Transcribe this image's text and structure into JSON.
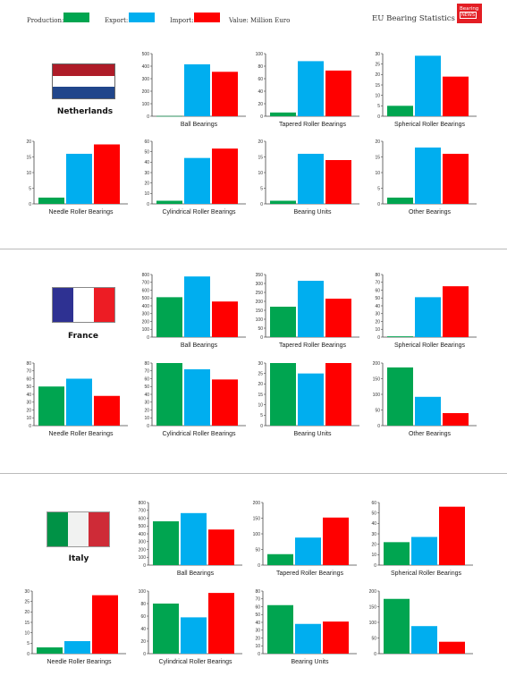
{
  "header": {
    "production_label": "Production:",
    "export_label": "Export:",
    "import_label": "Import:",
    "value_note": "Value: Million Euro",
    "title": "EU Bearing Statistics",
    "logo_line1": "Bearing",
    "logo_line2": "NEWS"
  },
  "colors": {
    "production": "#00a550",
    "export": "#00aeef",
    "import": "#ff0000"
  },
  "countries": [
    {
      "name": "Netherlands",
      "flag": [
        "#ae1c28",
        "#ffffff",
        "#21468b"
      ],
      "charts": [
        {
          "type": "bar",
          "title": "Ball Bearings",
          "ylim": [
            0,
            500
          ],
          "yticks": [
            0,
            100,
            200,
            300,
            400,
            500
          ],
          "series": [
            {
              "values": [
                2
              ]
            },
            {
              "values": [
                415
              ]
            },
            {
              "values": [
                355
              ]
            }
          ]
        },
        {
          "type": "bar",
          "title": "Tapered Roller Bearings",
          "ylim": [
            0,
            100
          ],
          "yticks": [
            0,
            20,
            40,
            60,
            80,
            100
          ],
          "series": [
            {
              "values": [
                6
              ]
            },
            {
              "values": [
                88
              ]
            },
            {
              "values": [
                73
              ]
            }
          ]
        },
        {
          "type": "bar",
          "title": "Spherical Roller Bearings",
          "ylim": [
            0,
            30
          ],
          "yticks": [
            0,
            5,
            10,
            15,
            20,
            25,
            30
          ],
          "series": [
            {
              "values": [
                5
              ]
            },
            {
              "values": [
                29
              ]
            },
            {
              "values": [
                19
              ]
            }
          ]
        },
        {
          "type": "bar",
          "title": "Needle Roller Bearings",
          "ylim": [
            0,
            20
          ],
          "yticks": [
            0,
            5,
            10,
            15,
            20
          ],
          "series": [
            {
              "values": [
                2
              ]
            },
            {
              "values": [
                16
              ]
            },
            {
              "values": [
                19
              ]
            }
          ]
        },
        {
          "type": "bar",
          "title": "Cylindrical Roller Bearings",
          "ylim": [
            0,
            60
          ],
          "yticks": [
            0,
            10,
            20,
            30,
            40,
            50,
            60
          ],
          "series": [
            {
              "values": [
                3
              ]
            },
            {
              "values": [
                44
              ]
            },
            {
              "values": [
                53
              ]
            }
          ]
        },
        {
          "type": "bar",
          "title": "Bearing Units",
          "ylim": [
            0,
            20
          ],
          "yticks": [
            0,
            5,
            10,
            15,
            20
          ],
          "series": [
            {
              "values": [
                1
              ]
            },
            {
              "values": [
                16
              ]
            },
            {
              "values": [
                14
              ]
            }
          ]
        },
        {
          "type": "bar",
          "title": "Other Bearings",
          "ylim": [
            0,
            20
          ],
          "yticks": [
            0,
            5,
            10,
            15,
            20
          ],
          "series": [
            {
              "values": [
                2
              ]
            },
            {
              "values": [
                18
              ]
            },
            {
              "values": [
                16
              ]
            }
          ]
        }
      ]
    },
    {
      "name": "France",
      "flag": [
        "#2e3192",
        "#ffffff",
        "#ed1c24"
      ],
      "charts": [
        {
          "type": "bar",
          "title": "Ball Bearings",
          "ylim": [
            0,
            800
          ],
          "yticks": [
            0,
            100,
            200,
            300,
            400,
            500,
            600,
            700,
            800
          ],
          "series": [
            {
              "values": [
                510
              ]
            },
            {
              "values": [
                775
              ]
            },
            {
              "values": [
                455
              ]
            }
          ]
        },
        {
          "type": "bar",
          "title": "Tapered Roller Bearings",
          "ylim": [
            0,
            350
          ],
          "yticks": [
            0,
            50,
            100,
            150,
            200,
            250,
            300,
            350
          ],
          "series": [
            {
              "values": [
                170
              ]
            },
            {
              "values": [
                315
              ]
            },
            {
              "values": [
                215
              ]
            }
          ]
        },
        {
          "type": "bar",
          "title": "Spherical Roller Bearings",
          "ylim": [
            0,
            80
          ],
          "yticks": [
            0,
            10,
            20,
            30,
            40,
            50,
            60,
            70,
            80
          ],
          "series": [
            {
              "values": [
                1
              ]
            },
            {
              "values": [
                51
              ]
            },
            {
              "values": [
                65
              ]
            }
          ]
        },
        {
          "type": "bar",
          "title": "Needle Roller Bearings",
          "ylim": [
            0,
            80
          ],
          "yticks": [
            0,
            10,
            20,
            30,
            40,
            50,
            60,
            70,
            80
          ],
          "series": [
            {
              "values": [
                50
              ]
            },
            {
              "values": [
                60
              ]
            },
            {
              "values": [
                38
              ]
            }
          ]
        },
        {
          "type": "bar",
          "title": "Cylindrical Roller Bearings",
          "ylim": [
            0,
            80
          ],
          "yticks": [
            0,
            10,
            20,
            30,
            40,
            50,
            60,
            70,
            80
          ],
          "series": [
            {
              "values": [
                80
              ]
            },
            {
              "values": [
                72
              ]
            },
            {
              "values": [
                59
              ]
            }
          ]
        },
        {
          "type": "bar",
          "title": "Bearing Units",
          "ylim": [
            0,
            30
          ],
          "yticks": [
            0,
            5,
            10,
            15,
            20,
            25,
            30
          ],
          "series": [
            {
              "values": [
                30
              ]
            },
            {
              "values": [
                25
              ]
            },
            {
              "values": [
                30
              ]
            }
          ]
        },
        {
          "type": "bar",
          "title": "Other Bearings",
          "ylim": [
            0,
            200
          ],
          "yticks": [
            0,
            50,
            100,
            150,
            200
          ],
          "series": [
            {
              "values": [
                186
              ]
            },
            {
              "values": [
                92
              ]
            },
            {
              "values": [
                40
              ]
            }
          ]
        }
      ]
    },
    {
      "name": "Italy",
      "flag": [
        "#009246",
        "#f1f2f1",
        "#ce2b37"
      ],
      "charts": [
        {
          "type": "bar",
          "title": "Ball Bearings",
          "ylim": [
            0,
            800
          ],
          "yticks": [
            0,
            100,
            200,
            300,
            400,
            500,
            600,
            700,
            800
          ],
          "series": [
            {
              "values": [
                560
              ]
            },
            {
              "values": [
                665
              ]
            },
            {
              "values": [
                455
              ]
            }
          ]
        },
        {
          "type": "bar",
          "title": "Tapered Roller Bearings",
          "ylim": [
            0,
            200
          ],
          "yticks": [
            0,
            50,
            100,
            150,
            200
          ],
          "series": [
            {
              "values": [
                35
              ]
            },
            {
              "values": [
                88
              ]
            },
            {
              "values": [
                152
              ]
            }
          ]
        },
        {
          "type": "bar",
          "title": "Spherical Roller Bearings",
          "ylim": [
            0,
            60
          ],
          "yticks": [
            0,
            10,
            20,
            30,
            40,
            50,
            60
          ],
          "series": [
            {
              "values": [
                22
              ]
            },
            {
              "values": [
                27
              ]
            },
            {
              "values": [
                56
              ]
            }
          ]
        },
        {
          "type": "bar",
          "title": "Needle Roller Bearings",
          "ylim": [
            0,
            30
          ],
          "yticks": [
            0,
            5,
            10,
            15,
            20,
            25,
            30
          ],
          "series": [
            {
              "values": [
                3
              ]
            },
            {
              "values": [
                6
              ]
            },
            {
              "values": [
                28
              ]
            }
          ]
        },
        {
          "type": "bar",
          "title": "Cylindrical Roller Bearings",
          "ylim": [
            0,
            100
          ],
          "yticks": [
            0,
            20,
            40,
            60,
            80,
            100
          ],
          "series": [
            {
              "values": [
                80
              ]
            },
            {
              "values": [
                58
              ]
            },
            {
              "values": [
                97
              ]
            }
          ]
        },
        {
          "type": "bar",
          "title": "Bearing Units",
          "ylim": [
            0,
            80
          ],
          "yticks": [
            0,
            10,
            20,
            30,
            40,
            50,
            60,
            70,
            80
          ],
          "series": [
            {
              "values": [
                62
              ]
            },
            {
              "values": [
                38
              ]
            },
            {
              "values": [
                41
              ]
            }
          ]
        },
        {
          "type": "bar",
          "title": "",
          "ylim": [
            0,
            200
          ],
          "yticks": [
            0,
            50,
            100,
            150,
            200
          ],
          "series": [
            {
              "values": [
                175
              ]
            },
            {
              "values": [
                88
              ]
            },
            {
              "values": [
                38
              ]
            }
          ]
        }
      ]
    }
  ]
}
